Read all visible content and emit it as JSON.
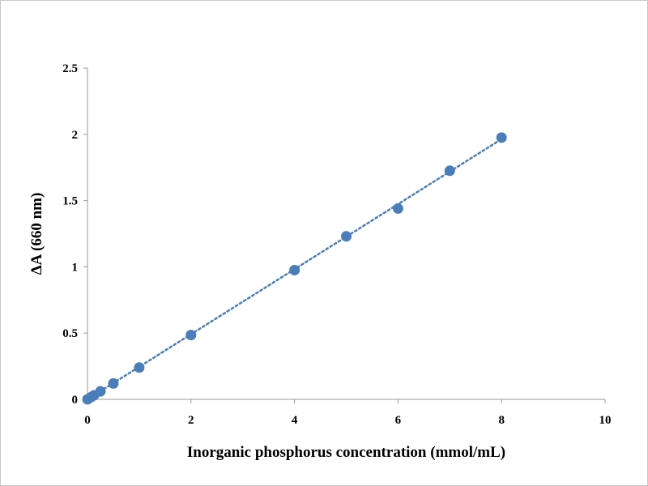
{
  "chart_data": {
    "type": "scatter",
    "title": "",
    "xlabel": "Inorganic phosphorus concentration (mmol/mL)",
    "ylabel": "ΔA (660 nm)",
    "xlim": [
      0,
      10
    ],
    "ylim": [
      0,
      2.5
    ],
    "x_ticks": [
      0,
      2,
      4,
      6,
      8,
      10
    ],
    "y_ticks": [
      0,
      0.5,
      1,
      1.5,
      2,
      2.5
    ],
    "x_tick_labels": [
      "0",
      "2",
      "4",
      "6",
      "8",
      "10"
    ],
    "y_tick_labels": [
      "0",
      "0.5",
      "1",
      "1.5",
      "2",
      "2.5"
    ],
    "grid": false,
    "legend": "none",
    "series": [
      {
        "color": "#4a7ebb",
        "marker": "circle",
        "x": [
          0,
          0.0625,
          0.125,
          0.25,
          0.5,
          1,
          2,
          4,
          5,
          6,
          7,
          8
        ],
        "y": [
          0.0,
          0.015,
          0.03,
          0.06,
          0.12,
          0.24,
          0.485,
          0.975,
          1.23,
          1.44,
          1.725,
          1.975
        ]
      }
    ],
    "trendline": {
      "type": "linear",
      "style": "dotted",
      "color": "#4a7ebb",
      "x_range": [
        0,
        8
      ],
      "slope": 0.2455,
      "intercept": 0.0
    }
  }
}
